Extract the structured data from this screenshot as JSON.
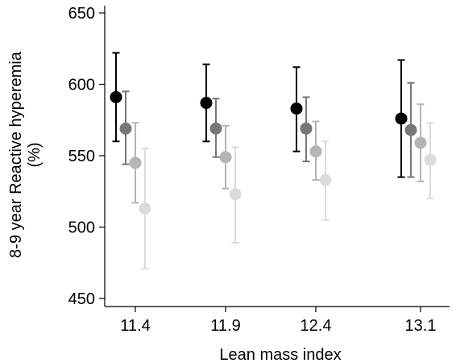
{
  "chart_data": {
    "type": "scatter",
    "title": "",
    "xlabel": "Lean mass index",
    "ylabel_lines": [
      "8-9 year Reactive hyperemia",
      "(%)"
    ],
    "categories": [
      "11.4",
      "11.9",
      "12.4",
      "13.1"
    ],
    "ylim": [
      450,
      650
    ],
    "yticks": [
      450,
      500,
      550,
      600,
      650
    ],
    "ytick_labels": [
      "450",
      "500",
      "550",
      "600",
      "650"
    ],
    "grid": false,
    "series_colors": [
      "#000000",
      "#777777",
      "#b5b5b5",
      "#dcdcdc"
    ],
    "series": [
      {
        "mean": [
          591,
          587,
          583,
          576
        ],
        "lower": [
          560,
          560,
          553,
          535
        ],
        "upper": [
          622,
          614,
          612,
          617
        ]
      },
      {
        "mean": [
          569,
          569,
          569,
          568
        ],
        "lower": [
          544,
          549,
          546,
          535
        ],
        "upper": [
          595,
          590,
          591,
          601
        ]
      },
      {
        "mean": [
          545,
          549,
          553,
          559
        ],
        "lower": [
          517,
          527,
          533,
          532
        ],
        "upper": [
          573,
          571,
          574,
          586
        ]
      },
      {
        "mean": [
          513,
          523,
          533,
          547
        ],
        "lower": [
          471,
          489,
          505,
          520
        ],
        "upper": [
          555,
          556,
          560,
          573
        ]
      }
    ]
  }
}
